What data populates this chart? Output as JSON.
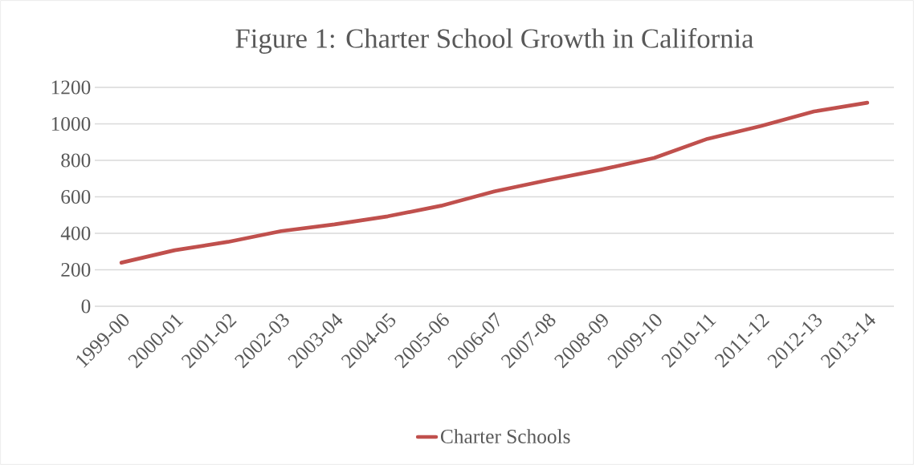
{
  "chart_data": {
    "type": "line",
    "title": "Figure 1: Charter School Growth in California",
    "categories": [
      "1999-00",
      "2000-01",
      "2001-02",
      "2002-03",
      "2003-04",
      "2004-05",
      "2005-06",
      "2006-07",
      "2007-08",
      "2008-09",
      "2009-10",
      "2010-11",
      "2011-12",
      "2012-13",
      "2013-14"
    ],
    "series": [
      {
        "name": "Charter Schools",
        "color": "#c0504d",
        "values": [
          239,
          307,
          353,
          412,
          449,
          493,
          551,
          630,
          691,
          749,
          813,
          918,
          988,
          1068,
          1116
        ]
      }
    ],
    "ylim": [
      0,
      1200
    ],
    "yticks": [
      0,
      200,
      400,
      600,
      800,
      1000,
      1200
    ],
    "grid": "y",
    "legend": "bottom",
    "marker": "none",
    "line_style": "solid"
  }
}
